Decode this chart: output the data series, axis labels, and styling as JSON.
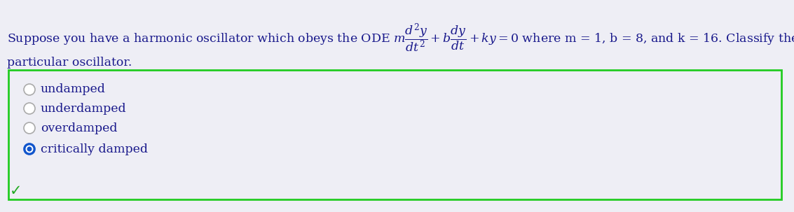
{
  "bg_color_top": "#eeeef5",
  "bg_color_box": "#eeeef5",
  "box_border_color": "#22cc22",
  "text_color": "#1a1a8c",
  "options": [
    "undamped",
    "underdamped",
    "overdamped",
    "critically damped"
  ],
  "selected_index": 3,
  "radio_unselected_edge": "#aaaaaa",
  "radio_selected_outer": "#1155cc",
  "radio_selected_inner": "#1155cc",
  "radio_selected_white": "#ffffff",
  "checkmark_color": "#22aa22",
  "font_size": 12.5,
  "option_font_size": 12.5
}
